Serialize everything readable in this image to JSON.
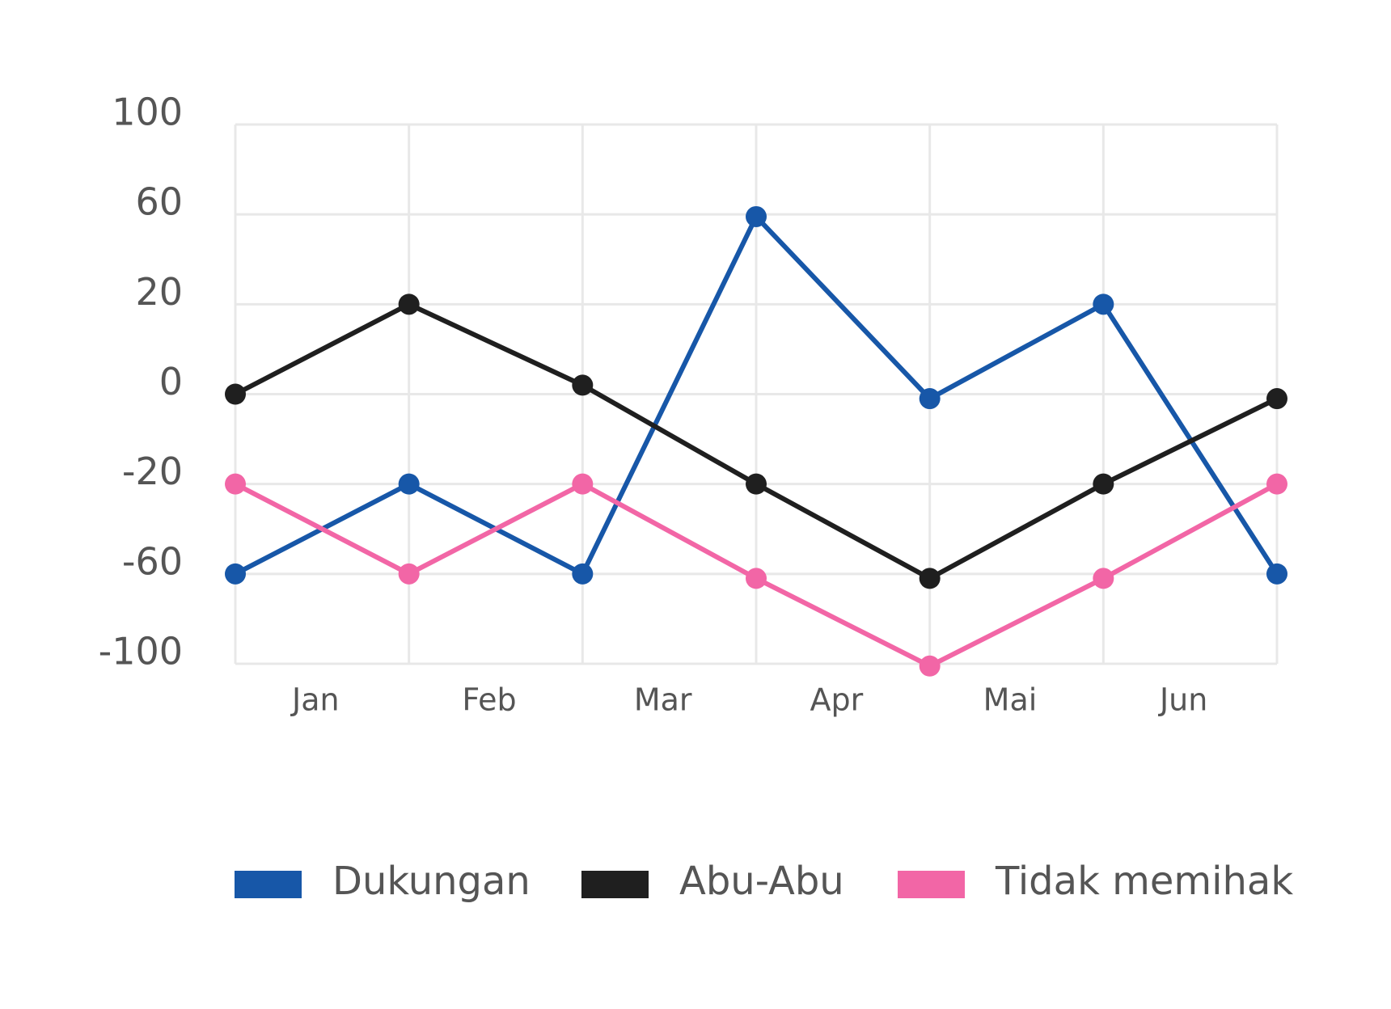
{
  "chart_data": {
    "type": "line",
    "categories": [
      "Jan",
      "Feb",
      "Mar",
      "Apr",
      "Mai",
      "Jun",
      null
    ],
    "series": [
      {
        "name": "Dukungan",
        "color": "#1757a8",
        "values": [
          -60,
          -20,
          -60,
          59,
          -1,
          20,
          -60
        ]
      },
      {
        "name": "Abu-Abu",
        "color": "#1f1f1f",
        "values": [
          0,
          20,
          2,
          -20,
          -62,
          -20,
          -1
        ]
      },
      {
        "name": "Tidak memihak",
        "color": "#f266a6",
        "values": [
          -20,
          -60,
          -20,
          -62,
          -101,
          -62,
          -20
        ]
      }
    ],
    "ylim": [
      -100,
      100
    ],
    "yticks": [
      100,
      60,
      20,
      0,
      -20,
      -60,
      -100
    ],
    "grid": true,
    "legend": "bottom"
  }
}
